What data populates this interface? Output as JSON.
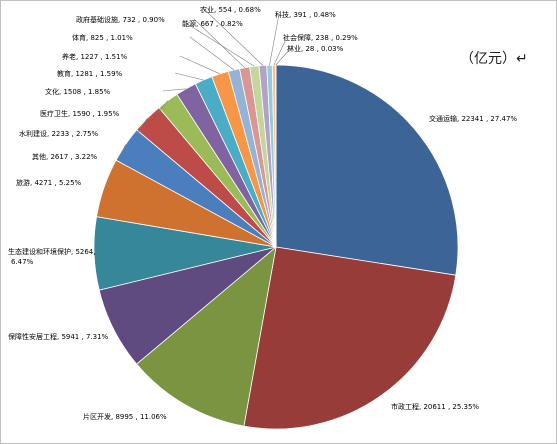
{
  "unit_label": "（亿元）↵",
  "chart_data": {
    "type": "pie",
    "title": "",
    "legend": "none",
    "slices": [
      {
        "name": "交通运输",
        "value": 22341,
        "percent": "27.47%",
        "color": "#3d6496"
      },
      {
        "name": "市政工程",
        "value": 20611,
        "percent": "25.35%",
        "color": "#983c3a"
      },
      {
        "name": "片区开发",
        "value": 8995,
        "percent": "11.06%",
        "color": "#7a9442"
      },
      {
        "name": "保障性安居工程",
        "value": 5941,
        "percent": "7.31%",
        "color": "#5f4b80"
      },
      {
        "name": "生态建设和环境保护",
        "value": 5264,
        "percent": "6.47%",
        "color": "#368799"
      },
      {
        "name": "旅游",
        "value": 4271,
        "percent": "5.25%",
        "color": "#d0722f"
      },
      {
        "name": "其他",
        "value": 2617,
        "percent": "3.22%",
        "color": "#4a7ebd"
      },
      {
        "name": "水利建设",
        "value": 2233,
        "percent": "2.75%",
        "color": "#bd4b48"
      },
      {
        "name": "医疗卫生",
        "value": 1590,
        "percent": "1.95%",
        "color": "#9bbb59"
      },
      {
        "name": "文化",
        "value": 1508,
        "percent": "1.85%",
        "color": "#8064a2"
      },
      {
        "name": "教育",
        "value": 1281,
        "percent": "1.59%",
        "color": "#4bacc6"
      },
      {
        "name": "养老",
        "value": 1227,
        "percent": "1.51%",
        "color": "#f79646"
      },
      {
        "name": "体育",
        "value": 825,
        "percent": "1.01%",
        "color": "#95b3d7"
      },
      {
        "name": "政府基础设施",
        "value": 732,
        "percent": "0.90%",
        "color": "#d99694"
      },
      {
        "name": "能源",
        "value": 667,
        "percent": "0.82%",
        "color": "#c3d69b"
      },
      {
        "name": "农业",
        "value": 554,
        "percent": "0.68%",
        "color": "#b2a2c7"
      },
      {
        "name": "科技",
        "value": 391,
        "percent": "0.48%",
        "color": "#93cddd"
      },
      {
        "name": "社会保障",
        "value": 238,
        "percent": "0.29%",
        "color": "#fac08f"
      },
      {
        "name": "林业",
        "value": 28,
        "percent": "0.03%",
        "color": "#1f497d"
      }
    ]
  }
}
